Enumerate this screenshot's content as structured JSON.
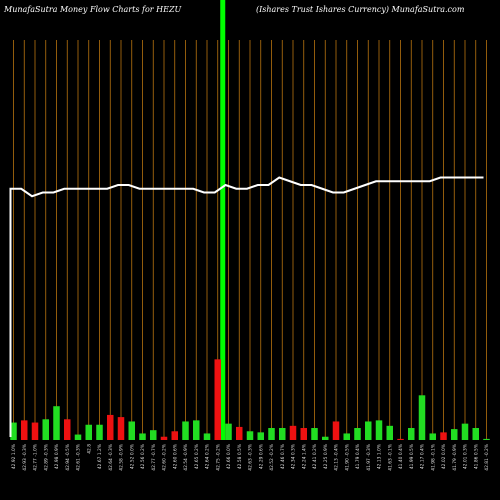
{
  "header": {
    "left_title": "MunafaSutra  Money Flow  Charts for HEZU",
    "right_title": "(Ishares Trust Ishares Currency) MunafaSutra.com"
  },
  "colors": {
    "background": "#000000",
    "gridline": "#b8740f",
    "up": "#22dd22",
    "down": "#ee1111",
    "line": "#ffffff",
    "highlight": "#00ff00"
  },
  "chart_data": {
    "type": "bar",
    "title": "",
    "categories": [
      "42.92 1.0%",
      "42.93 -0.3%",
      "42.77 -1.0%",
      "42.89 -0.3%",
      "42.98 0.9%",
      "42.94 -0.5%",
      "42.61 -0.3%",
      "42.8",
      "42.67 1.2%",
      "42.64 -0.3%",
      "42.58 -0.9%",
      "42.52 0.0%",
      "42.56 0.2%",
      "42.77 -0.7%",
      "42.60 -0.2%",
      "42.60 0.6%",
      "42.54 -0.9%",
      "42.65 0.2%",
      "42.64 0.2%",
      "42.75 -0.2%",
      "42.66 0.0%",
      "42.58 0.5%",
      "42.63 -0.3%",
      "42.29 0.6%",
      "42.52 -0.2%",
      "42.46 0.7%",
      "42.34 0.3%",
      "42.24 1.4%",
      "42.41 0.2%",
      "42.25 0.9%",
      "42.13 -0.4%",
      "41.90 -0.5%",
      "41.79 0.4%",
      "41.97 -0.3%",
      "42.13 1.0%",
      "41.63 -0.1%",
      "41.40 0.4%",
      "41.99 0.5%",
      "42.17 0.4%",
      "41.98 -0.1%",
      "42.02 0.0%",
      "41.79 -0.9%",
      "42.01 0.3%",
      "41.86 0.5%",
      "42.81 -0.2%"
    ],
    "direction": [
      "up",
      "down",
      "down",
      "up",
      "up",
      "down",
      "up",
      "up",
      "up",
      "down",
      "down",
      "up",
      "up",
      "up",
      "down",
      "down",
      "up",
      "up",
      "up",
      "down",
      "up",
      "down",
      "up",
      "up",
      "up",
      "up",
      "down",
      "down",
      "up",
      "up",
      "down",
      "up",
      "up",
      "up",
      "up",
      "up",
      "down",
      "up",
      "up",
      "up",
      "down",
      "up",
      "up",
      "up",
      "up"
    ],
    "volumes": [
      16,
      18,
      16,
      19,
      31,
      19,
      5,
      14,
      14,
      23,
      21,
      17,
      6,
      9,
      3,
      8,
      17,
      18,
      6,
      74,
      15,
      12,
      8,
      7,
      11,
      11,
      13,
      11,
      11,
      3,
      17,
      6,
      11,
      17,
      18,
      13,
      1,
      11,
      41,
      6,
      7,
      10,
      15,
      11,
      1
    ],
    "money_flow_line": [
      67,
      67,
      65,
      66,
      66,
      67,
      67,
      67,
      67,
      67,
      68,
      68,
      67,
      67,
      67,
      67,
      67,
      67,
      66,
      66,
      68,
      67,
      67,
      68,
      68,
      70,
      69,
      68,
      68,
      67,
      66,
      66,
      67,
      68,
      69,
      69,
      69,
      69,
      69,
      69,
      70,
      70,
      70,
      70,
      70
    ],
    "ylim": [
      0,
      100
    ],
    "highlight_index": 19,
    "grid": true
  }
}
